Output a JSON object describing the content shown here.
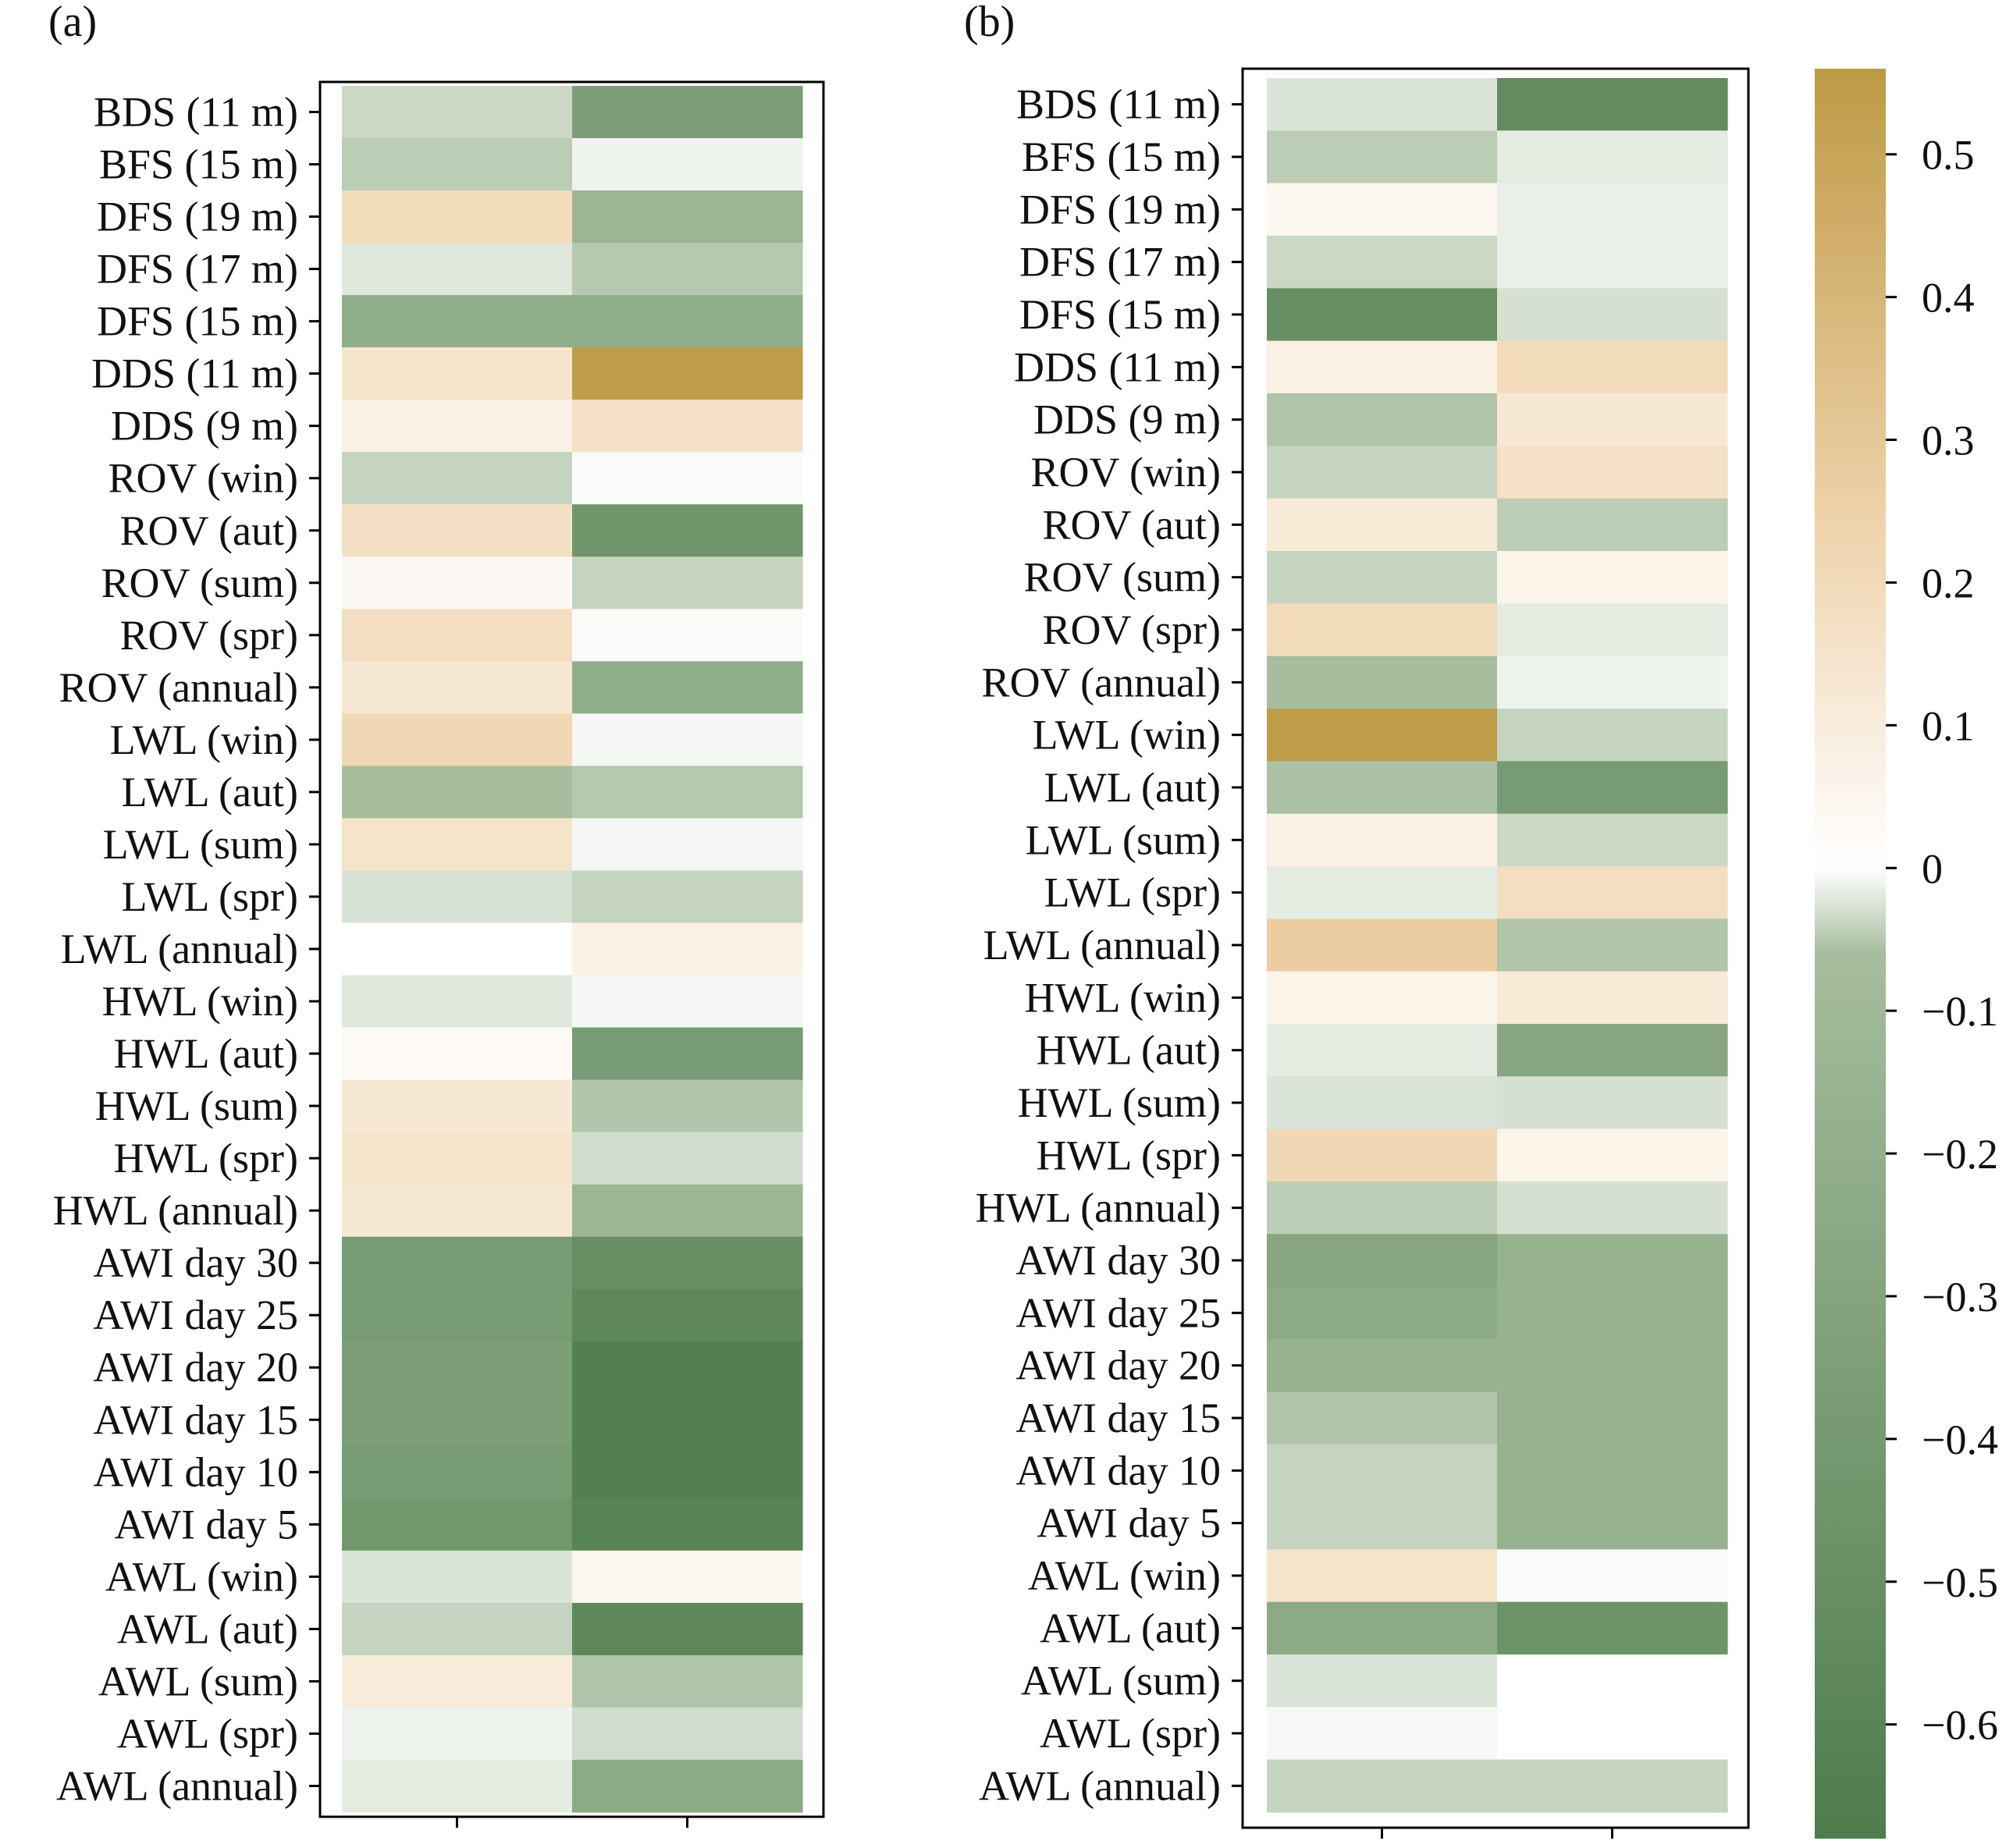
{
  "colors": {
    "neg_end": "#4e7c4b",
    "neg_mid": "#a6bd9e",
    "zero": "#ffffff",
    "pos_mid": "#eed1a8",
    "pos_end": "#bd9a45",
    "frame": "#000000"
  },
  "chart_data": [
    {
      "type": "heatmap",
      "panel_label": "(a)",
      "rows": [
        "BDS (11 m)",
        "BFS (15 m)",
        "DFS (19 m)",
        "DFS (17 m)",
        "DFS (15 m)",
        "DDS (11 m)",
        "DDS (9 m)",
        "ROV (win)",
        "ROV (aut)",
        "ROV (sum)",
        "ROV (spr)",
        "ROV (annual)",
        "LWL (win)",
        "LWL (aut)",
        "LWL (sum)",
        "LWL (spr)",
        "LWL (annual)",
        "HWL (win)",
        "HWL (aut)",
        "HWL (sum)",
        "HWL (spr)",
        "HWL (annual)",
        "AWI day 30",
        "AWI day 25",
        "AWI day 20",
        "AWI day 15",
        "AWI day 10",
        "AWI day 5",
        "AWL (win)",
        "AWL (aut)",
        "AWL (sum)",
        "AWL (spr)",
        "AWL (annual)"
      ],
      "columns": [
        "",
        ""
      ],
      "values": [
        [
          -0.2,
          -0.5
        ],
        [
          -0.26,
          -0.06
        ],
        [
          0.22,
          -0.38
        ],
        [
          -0.12,
          -0.28
        ],
        [
          -0.42,
          -0.42
        ],
        [
          0.16,
          0.55
        ],
        [
          0.08,
          0.18
        ],
        [
          -0.22,
          -0.02
        ],
        [
          0.19,
          -0.55
        ],
        [
          0.04,
          -0.22
        ],
        [
          0.2,
          -0.02
        ],
        [
          0.14,
          -0.42
        ],
        [
          0.24,
          -0.04
        ],
        [
          -0.34,
          -0.28
        ],
        [
          0.17,
          -0.04
        ],
        [
          -0.15,
          -0.22
        ],
        [
          0.0,
          0.09
        ],
        [
          -0.12,
          -0.04
        ],
        [
          0.03,
          -0.52
        ],
        [
          0.14,
          -0.3
        ],
        [
          0.16,
          -0.18
        ],
        [
          0.14,
          -0.38
        ],
        [
          -0.52,
          -0.58
        ],
        [
          -0.52,
          -0.62
        ],
        [
          -0.5,
          -0.66
        ],
        [
          -0.5,
          -0.66
        ],
        [
          -0.52,
          -0.66
        ],
        [
          -0.54,
          -0.64
        ],
        [
          -0.14,
          0.05
        ],
        [
          -0.22,
          -0.62
        ],
        [
          0.12,
          -0.3
        ],
        [
          -0.06,
          -0.18
        ],
        [
          -0.1,
          -0.44
        ]
      ]
    },
    {
      "type": "heatmap",
      "panel_label": "(b)",
      "rows": [
        "BDS (11 m)",
        "BFS (15 m)",
        "DFS (19 m)",
        "DFS (17 m)",
        "DFS (15 m)",
        "DDS (11 m)",
        "DDS (9 m)",
        "ROV (win)",
        "ROV (aut)",
        "ROV (sum)",
        "ROV (spr)",
        "ROV (annual)",
        "LWL (win)",
        "LWL (aut)",
        "LWL (sum)",
        "LWL (spr)",
        "LWL (annual)",
        "HWL (win)",
        "HWL (aut)",
        "HWL (sum)",
        "HWL (spr)",
        "HWL (annual)",
        "AWI day 30",
        "AWI day 25",
        "AWI day 20",
        "AWI day 15",
        "AWI day 10",
        "AWI day 5",
        "AWL (win)",
        "AWL (aut)",
        "AWL (sum)",
        "AWL (spr)",
        "AWL (annual)"
      ],
      "columns": [
        "",
        ""
      ],
      "values": [
        [
          -0.14,
          -0.6
        ],
        [
          -0.26,
          -0.1
        ],
        [
          0.05,
          -0.08
        ],
        [
          -0.2,
          -0.08
        ],
        [
          -0.58,
          -0.16
        ],
        [
          0.09,
          0.22
        ],
        [
          -0.3,
          0.14
        ],
        [
          -0.22,
          0.18
        ],
        [
          0.13,
          -0.26
        ],
        [
          -0.22,
          0.07
        ],
        [
          0.22,
          -0.1
        ],
        [
          -0.34,
          -0.06
        ],
        [
          0.55,
          -0.22
        ],
        [
          -0.32,
          -0.52
        ],
        [
          0.09,
          -0.2
        ],
        [
          -0.1,
          0.2
        ],
        [
          0.3,
          -0.3
        ],
        [
          0.07,
          0.13
        ],
        [
          -0.1,
          -0.46
        ],
        [
          -0.14,
          -0.16
        ],
        [
          0.24,
          0.07
        ],
        [
          -0.26,
          -0.16
        ],
        [
          -0.46,
          -0.4
        ],
        [
          -0.44,
          -0.4
        ],
        [
          -0.4,
          -0.4
        ],
        [
          -0.3,
          -0.4
        ],
        [
          -0.22,
          -0.4
        ],
        [
          -0.22,
          -0.4
        ],
        [
          0.17,
          -0.02
        ],
        [
          -0.44,
          -0.56
        ],
        [
          -0.14,
          0.0
        ],
        [
          -0.03,
          0.0
        ],
        [
          -0.22,
          -0.22
        ]
      ]
    }
  ],
  "colorbar": {
    "min": -0.68,
    "max": 0.56,
    "ticks": [
      0.5,
      0.4,
      0.3,
      0.2,
      0.1,
      0,
      -0.1,
      -0.2,
      -0.3,
      -0.4,
      -0.5,
      -0.6
    ],
    "tick_labels": [
      "0.5",
      "0.4",
      "0.3",
      "0.2",
      "0.1",
      "0",
      "−0.1",
      "−0.2",
      "−0.3",
      "−0.4",
      "−0.5",
      "−0.6"
    ]
  }
}
